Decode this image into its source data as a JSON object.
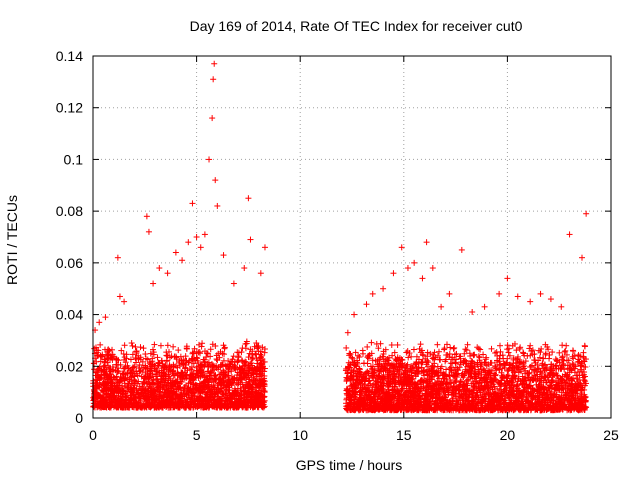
{
  "chart_data": {
    "type": "scatter",
    "title": "Day 169 of 2014, Rate Of TEC Index for receiver cut0",
    "xlabel": "GPS time / hours",
    "ylabel": "ROTI / TECUs",
    "xlim": [
      0,
      25
    ],
    "ylim": [
      0,
      0.14
    ],
    "x_ticks": [
      "0",
      "5",
      "10",
      "15",
      "20",
      "25"
    ],
    "y_ticks": [
      "0",
      "0.02",
      "0.04",
      "0.06",
      "0.08",
      "0.1",
      "0.12",
      "0.14"
    ],
    "grid": true,
    "marker": "plus",
    "series": [
      {
        "name": "ROTI",
        "color": "#ff0000",
        "x": [
          0.1,
          0.3,
          0.6,
          1.2,
          1.3,
          1.5,
          2.6,
          2.7,
          2.9,
          3.2,
          3.6,
          4.0,
          4.3,
          4.6,
          4.8,
          5.0,
          5.2,
          5.4,
          5.6,
          5.75,
          5.8,
          5.85,
          5.9,
          6.0,
          6.3,
          6.8,
          7.3,
          7.5,
          7.6,
          8.1,
          8.3,
          12.3,
          12.6,
          13.2,
          13.5,
          14.0,
          14.5,
          14.9,
          15.2,
          15.5,
          15.9,
          16.1,
          16.4,
          16.8,
          17.2,
          17.8,
          18.3,
          18.9,
          19.6,
          20.0,
          20.5,
          21.1,
          21.6,
          22.1,
          22.6,
          23.0,
          23.6,
          23.8
        ],
        "y": [
          0.034,
          0.037,
          0.039,
          0.062,
          0.047,
          0.045,
          0.078,
          0.072,
          0.052,
          0.058,
          0.056,
          0.064,
          0.061,
          0.068,
          0.083,
          0.07,
          0.066,
          0.071,
          0.1,
          0.116,
          0.131,
          0.137,
          0.092,
          0.082,
          0.063,
          0.052,
          0.058,
          0.085,
          0.069,
          0.056,
          0.066,
          0.033,
          0.04,
          0.044,
          0.048,
          0.05,
          0.056,
          0.066,
          0.058,
          0.06,
          0.054,
          0.068,
          0.058,
          0.043,
          0.048,
          0.065,
          0.041,
          0.043,
          0.048,
          0.054,
          0.047,
          0.045,
          0.048,
          0.046,
          0.043,
          0.071,
          0.062,
          0.079
        ]
      }
    ],
    "dense_cloud": {
      "segments": [
        {
          "x_start": 0,
          "x_end": 8.3,
          "y_min": 0.004,
          "y_max": 0.03
        },
        {
          "x_start": 12.2,
          "x_end": 23.8,
          "y_min": 0.003,
          "y_max": 0.03
        }
      ]
    }
  }
}
